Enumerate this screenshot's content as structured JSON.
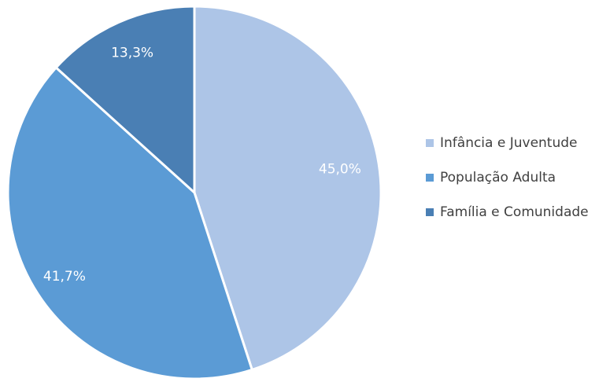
{
  "chart_data": {
    "type": "pie",
    "categories": [
      "Infância e Juventude",
      "População Adulta",
      "Família e Comunidade"
    ],
    "values": [
      45.0,
      41.7,
      13.3
    ],
    "data_labels": [
      "45,0%",
      "41,7%",
      "13,3%"
    ],
    "colors": [
      "#adc5e7",
      "#5b9bd5",
      "#4a7fb4"
    ],
    "legend_position": "right",
    "start_angle_deg": 0,
    "direction": "clockwise"
  }
}
